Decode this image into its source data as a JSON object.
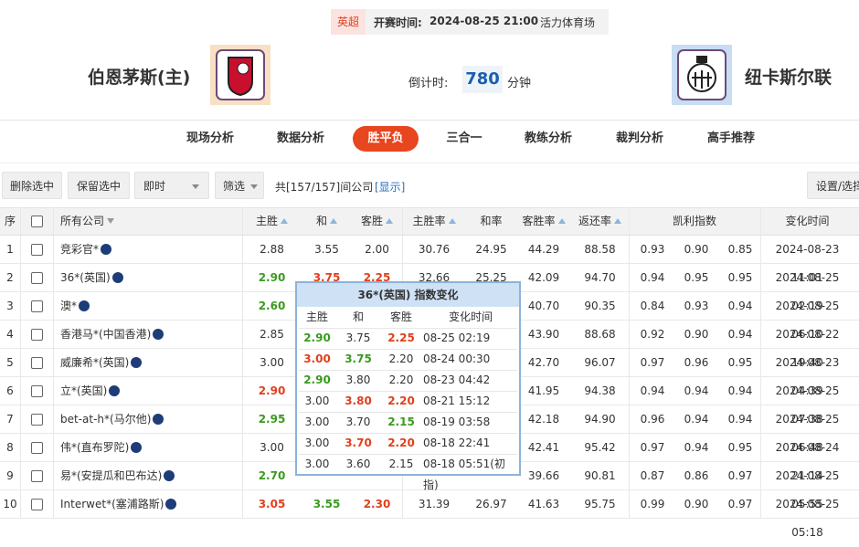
{
  "header": {
    "league": "英超",
    "match_time_label": "开赛时间:",
    "match_time": "2024-08-25 21:00",
    "venue": "活力体育场",
    "home": "伯恩茅斯(主)",
    "away": "纽卡斯尔联",
    "countdown_label": "倒计时:",
    "countdown": "780",
    "countdown_unit": "分钟"
  },
  "tabs": {
    "items": [
      "现场分析",
      "数据分析",
      "胜平负",
      "三合一",
      "教练分析",
      "裁判分析",
      "高手推荐"
    ],
    "active": 2
  },
  "toolbar": {
    "buttons": [
      "删除选中",
      "保留选中"
    ],
    "mode": "即时",
    "filter": "筛选",
    "count": "共[157/157]间公司",
    "show": "[显示]",
    "settings": "设置/选择"
  },
  "table": {
    "columns": [
      "序",
      "所有公司",
      "主胜",
      "和",
      "客胜",
      "主胜率",
      "和率",
      "客胜率",
      "返还率",
      "凯利指数",
      "变化时间"
    ],
    "rows": [
      {
        "no": "1",
        "company": "竞彩官*",
        "odds": [
          "2.88",
          "3.55",
          "2.00"
        ],
        "odds_colors": [
          null,
          null,
          null
        ],
        "rates": [
          "30.76",
          "24.95",
          "44.29"
        ],
        "return": "88.58",
        "kelly": [
          "0.93",
          "0.90",
          "0.85"
        ],
        "time": "2024-08-23 11:01"
      },
      {
        "no": "2",
        "company": "36*(英国)",
        "odds": [
          "2.90",
          "3.75",
          "2.25"
        ],
        "odds_colors": [
          "#3a9a1e",
          "#e0401c",
          "#e0401c"
        ],
        "rates": [
          "32.66",
          "25.25",
          "42.09"
        ],
        "return": "94.70",
        "kelly": [
          "0.94",
          "0.95",
          "0.95"
        ],
        "time": "2024-08-25 02:19"
      },
      {
        "no": "3",
        "company": "澳*",
        "odds": [
          "2.60",
          null,
          null
        ],
        "odds_colors": [
          "#3a9a1e",
          null,
          null
        ],
        "rates": [
          null,
          null,
          "40.70"
        ],
        "return": "90.35",
        "kelly": [
          "0.84",
          "0.93",
          "0.94"
        ],
        "time": "2024-08-25 06:10"
      },
      {
        "no": "4",
        "company": "香港马*(中国香港)",
        "odds": [
          "2.85",
          null,
          null
        ],
        "odds_colors": [
          null,
          null,
          null
        ],
        "rates": [
          null,
          null,
          "43.90"
        ],
        "return": "88.68",
        "kelly": [
          "0.92",
          "0.90",
          "0.94"
        ],
        "time": "2024-08-22 19:40"
      },
      {
        "no": "5",
        "company": "威廉希*(英国)",
        "odds": [
          "3.00",
          null,
          null
        ],
        "odds_colors": [
          null,
          null,
          null
        ],
        "rates": [
          null,
          null,
          "42.70"
        ],
        "return": "96.07",
        "kelly": [
          "0.97",
          "0.96",
          "0.95"
        ],
        "time": "2024-08-23 04:39"
      },
      {
        "no": "6",
        "company": "立*(英国)",
        "odds": [
          "2.90",
          null,
          null
        ],
        "odds_colors": [
          "#e0401c",
          null,
          null
        ],
        "rates": [
          null,
          null,
          "41.95"
        ],
        "return": "94.38",
        "kelly": [
          "0.94",
          "0.94",
          "0.94"
        ],
        "time": "2024-08-25 07:38"
      },
      {
        "no": "7",
        "company": "bet-at-h*(马尔他)",
        "odds": [
          "2.95",
          null,
          null
        ],
        "odds_colors": [
          "#3a9a1e",
          null,
          null
        ],
        "rates": [
          null,
          null,
          "42.18"
        ],
        "return": "94.90",
        "kelly": [
          "0.96",
          "0.94",
          "0.94"
        ],
        "time": "2024-08-25 06:48"
      },
      {
        "no": "8",
        "company": "伟*(直布罗陀)",
        "odds": [
          "3.00",
          null,
          null
        ],
        "odds_colors": [
          null,
          null,
          null
        ],
        "rates": [
          null,
          null,
          "42.41"
        ],
        "return": "95.42",
        "kelly": [
          "0.97",
          "0.94",
          "0.95"
        ],
        "time": "2024-08-24 21:14"
      },
      {
        "no": "9",
        "company": "易*(安提瓜和巴布达)",
        "odds": [
          "2.70",
          null,
          null
        ],
        "odds_colors": [
          "#3a9a1e",
          null,
          null
        ],
        "rates": [
          null,
          null,
          "39.66"
        ],
        "return": "90.81",
        "kelly": [
          "0.87",
          "0.86",
          "0.97"
        ],
        "time": "2024-08-25 05:55"
      },
      {
        "no": "10",
        "company": "Interwet*(塞浦路斯)",
        "odds": [
          "3.05",
          "3.55",
          "2.30"
        ],
        "odds_colors": [
          "#e0401c",
          "#3a9a1e",
          "#e0401c"
        ],
        "rates": [
          "31.39",
          "26.97",
          "41.63"
        ],
        "return": "95.75",
        "kelly": [
          "0.99",
          "0.90",
          "0.97"
        ],
        "time": "2024-08-25 05:18"
      }
    ]
  },
  "popup": {
    "title": "36*(英国) 指数变化",
    "columns": [
      "主胜",
      "和",
      "客胜",
      "变化时间"
    ],
    "rows": [
      {
        "odds": [
          "2.90",
          "3.75",
          "2.25"
        ],
        "colors": [
          "#3a9a1e",
          null,
          "#e0401c"
        ],
        "time": "08-25 02:19"
      },
      {
        "odds": [
          "3.00",
          "3.75",
          "2.20"
        ],
        "colors": [
          "#e0401c",
          "#3a9a1e",
          null
        ],
        "time": "08-24 00:30"
      },
      {
        "odds": [
          "2.90",
          "3.80",
          "2.20"
        ],
        "colors": [
          "#3a9a1e",
          null,
          null
        ],
        "time": "08-23 04:42"
      },
      {
        "odds": [
          "3.00",
          "3.80",
          "2.20"
        ],
        "colors": [
          null,
          "#e0401c",
          "#e0401c"
        ],
        "time": "08-21 15:12"
      },
      {
        "odds": [
          "3.00",
          "3.70",
          "2.15"
        ],
        "colors": [
          null,
          null,
          "#3a9a1e"
        ],
        "time": "08-19 03:58"
      },
      {
        "odds": [
          "3.00",
          "3.70",
          "2.20"
        ],
        "colors": [
          null,
          "#e0401c",
          "#e0401c"
        ],
        "time": "08-18 22:41"
      },
      {
        "odds": [
          "3.00",
          "3.60",
          "2.15"
        ],
        "colors": [
          null,
          null,
          null
        ],
        "time": "08-18 05:51(初指)"
      }
    ]
  }
}
